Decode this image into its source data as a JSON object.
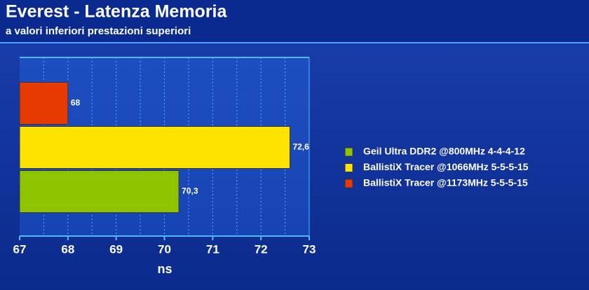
{
  "chart_data": {
    "type": "hbar",
    "title": "Everest - Latenza Memoria",
    "subtitle": "a valori inferiori prestazioni superiori",
    "x_label": "ns",
    "categories": [
      null
    ],
    "series": [
      {
        "name": "Geil Ultra DDR2 @800MHz 4-4-4-12",
        "color": "#8fc400",
        "values": [
          70.3
        ],
        "value_labels": [
          "70,3"
        ]
      },
      {
        "name": "BallistiX Tracer @1066MHz 5-5-5-15",
        "color": "#ffe400",
        "values": [
          72.6
        ],
        "value_labels": [
          "72,6"
        ]
      },
      {
        "name": "BallistiX Tracer @1173MHz 5-5-5-15",
        "color": "#e63a00",
        "values": [
          68
        ]
      }
    ],
    "xlim": [
      67,
      73
    ],
    "xticks": [
      67,
      68,
      69,
      70,
      71,
      72,
      73
    ],
    "grid_lines": [
      67.5,
      68,
      68.5,
      69,
      69.5,
      70,
      70.5,
      71,
      71.5,
      72,
      72.5
    ],
    "legend": "right"
  }
}
